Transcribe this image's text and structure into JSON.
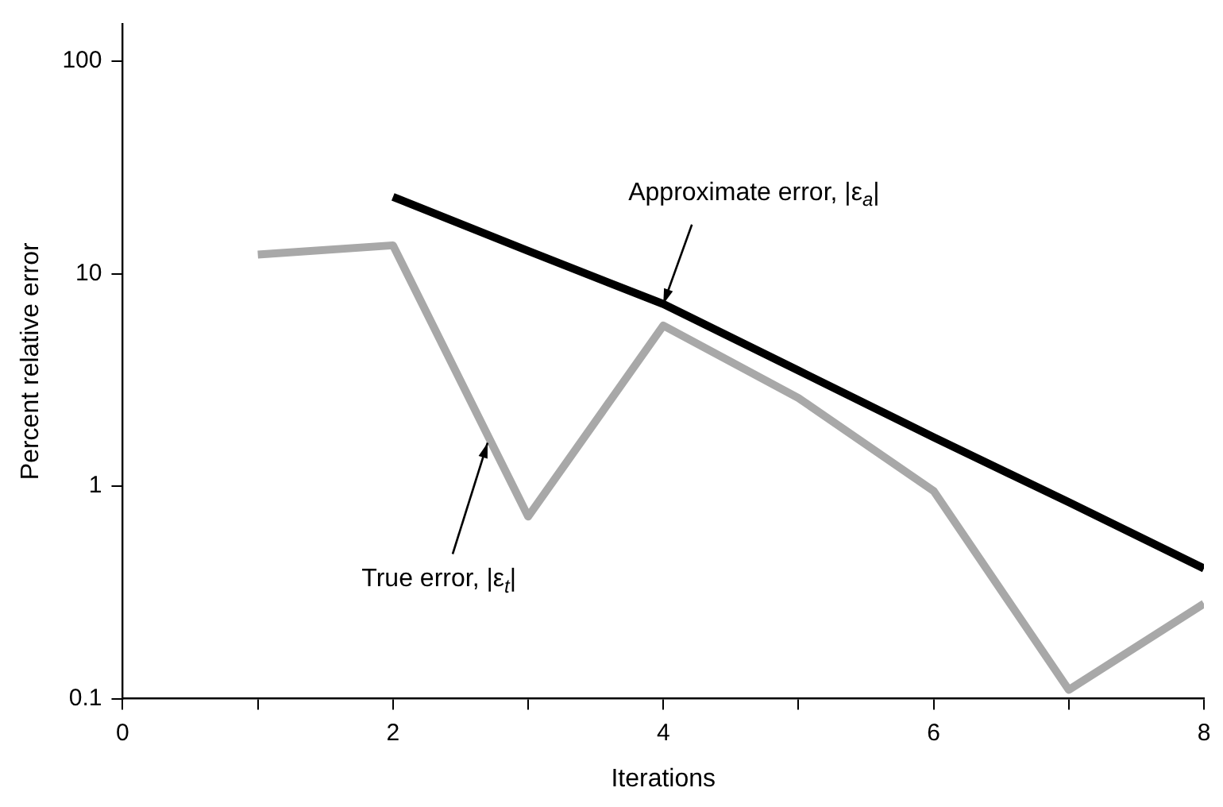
{
  "chart_data": {
    "type": "line",
    "xlabel": "Iterations",
    "ylabel": "Percent relative error",
    "log": "y",
    "grid": false,
    "legend": false,
    "marker": "none",
    "line_style": "solid",
    "xlim": [
      0,
      8
    ],
    "xticks": [
      0,
      {
        "value": 1,
        "label": null
      },
      2,
      {
        "value": 3,
        "label": null
      },
      4,
      {
        "value": 5,
        "label": null
      },
      6,
      {
        "value": 7,
        "label": null
      },
      8
    ],
    "ylim": [
      0.1,
      150
    ],
    "yticks": [
      0.1,
      1,
      10,
      100
    ],
    "series": [
      {
        "color": "#a8a8a8",
        "x": [
          1,
          2,
          3,
          4,
          5,
          6,
          7,
          8
        ],
        "values": [
          12.3,
          13.6,
          0.72,
          5.7,
          2.6,
          0.95,
          0.11,
          0.28
        ]
      },
      {
        "color": "#000000",
        "x": [
          2,
          3,
          4,
          5,
          6,
          7,
          8
        ],
        "values": [
          23,
          12.8,
          7.2,
          3.5,
          1.7,
          0.84,
          0.41
        ]
      }
    ],
    "annotations": [
      {
        "text": "Approximate error, |ε$_{a}$|",
        "x": 4,
        "y": 7.2
      },
      {
        "text": "True error, |ε$_{t}$|",
        "x": 2.7,
        "y": 1.6
      }
    ]
  }
}
